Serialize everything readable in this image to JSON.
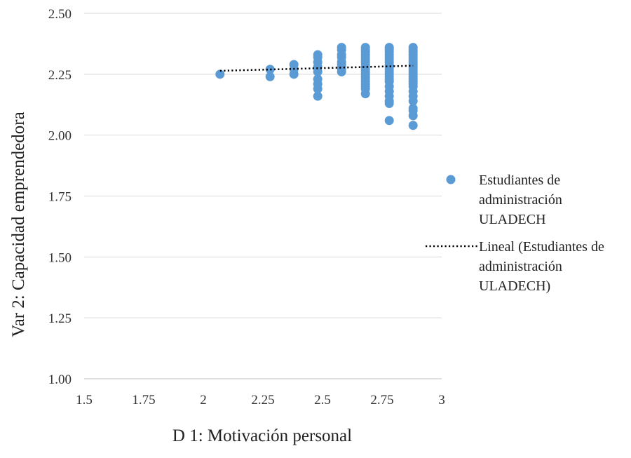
{
  "chart_data": {
    "type": "scatter",
    "xlabel": "D 1: Motivación personal",
    "ylabel": "Var 2: Capacidad emprendedora",
    "xlim": [
      1.5,
      3
    ],
    "ylim": [
      1.0,
      2.5
    ],
    "x_ticks": [
      "1.5",
      "1.75",
      "2",
      "2.25",
      "2.5",
      "2.75",
      "3"
    ],
    "y_ticks": [
      "1.00",
      "1.25",
      "1.50",
      "1.75",
      "2.00",
      "2.25",
      "2.50"
    ],
    "grid": "horizontal",
    "legend_position": "right",
    "series": [
      {
        "name": "Estudiantes de administración ULADECH",
        "legend_lines": [
          "Estudiantes de",
          "administración",
          "ULADECH"
        ],
        "color": "#5B9BD5",
        "x": [
          2.07,
          2.28,
          2.28,
          2.38,
          2.38,
          2.38,
          2.48,
          2.48,
          2.48,
          2.48,
          2.48,
          2.48,
          2.48,
          2.48,
          2.48,
          2.58,
          2.58,
          2.58,
          2.58,
          2.58,
          2.58,
          2.58,
          2.58,
          2.58,
          2.68,
          2.68,
          2.68,
          2.68,
          2.68,
          2.68,
          2.68,
          2.68,
          2.68,
          2.68,
          2.68,
          2.68,
          2.68,
          2.68,
          2.68,
          2.68,
          2.68,
          2.68,
          2.68,
          2.78,
          2.78,
          2.78,
          2.78,
          2.78,
          2.78,
          2.78,
          2.78,
          2.78,
          2.78,
          2.78,
          2.78,
          2.78,
          2.78,
          2.78,
          2.78,
          2.78,
          2.78,
          2.78,
          2.78,
          2.78,
          2.88,
          2.88,
          2.88,
          2.88,
          2.88,
          2.88,
          2.88,
          2.88,
          2.88,
          2.88,
          2.88,
          2.88,
          2.88,
          2.88,
          2.88,
          2.88,
          2.88,
          2.88,
          2.88,
          2.88,
          2.88,
          2.88,
          2.88,
          2.88
        ],
        "y": [
          2.25,
          2.27,
          2.24,
          2.29,
          2.27,
          2.25,
          2.33,
          2.32,
          2.3,
          2.28,
          2.26,
          2.23,
          2.21,
          2.19,
          2.16,
          2.36,
          2.35,
          2.33,
          2.32,
          2.3,
          2.29,
          2.28,
          2.27,
          2.26,
          2.36,
          2.35,
          2.34,
          2.33,
          2.32,
          2.31,
          2.3,
          2.29,
          2.28,
          2.27,
          2.26,
          2.25,
          2.24,
          2.23,
          2.22,
          2.21,
          2.2,
          2.19,
          2.17,
          2.36,
          2.35,
          2.34,
          2.33,
          2.32,
          2.31,
          2.3,
          2.29,
          2.28,
          2.27,
          2.26,
          2.25,
          2.24,
          2.23,
          2.22,
          2.2,
          2.18,
          2.16,
          2.14,
          2.13,
          2.06,
          2.36,
          2.35,
          2.34,
          2.33,
          2.32,
          2.31,
          2.3,
          2.29,
          2.28,
          2.27,
          2.26,
          2.25,
          2.24,
          2.23,
          2.22,
          2.21,
          2.2,
          2.18,
          2.16,
          2.14,
          2.11,
          2.1,
          2.08,
          2.04
        ]
      }
    ],
    "trendline": {
      "name": "Lineal (Estudiantes de administración ULADECH)",
      "legend_lines": [
        "Lineal (Estudiantes de",
        "administración",
        "ULADECH)"
      ],
      "style": "dotted",
      "color": "#000000",
      "x": [
        2.07,
        2.88
      ],
      "y": [
        2.264,
        2.285
      ]
    }
  }
}
